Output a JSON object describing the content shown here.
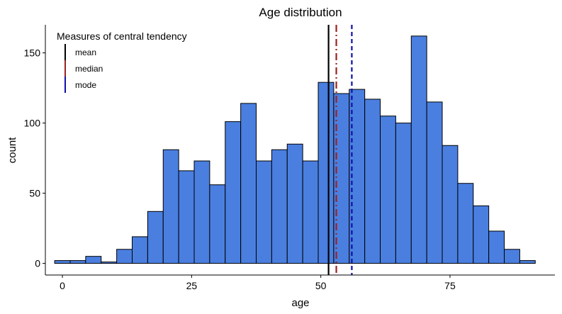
{
  "chart_data": {
    "type": "bar",
    "title": "Age distribution",
    "xlabel": "age",
    "ylabel": "count",
    "xlim": [
      -3.3,
      95.3
    ],
    "ylim": [
      -8.3,
      170
    ],
    "xticks": [
      0,
      25,
      50,
      75
    ],
    "yticks": [
      0,
      50,
      100,
      150
    ],
    "bin_width": 3,
    "bins": [
      {
        "x0": -1.5,
        "x1": 1.5,
        "count": 2
      },
      {
        "x0": 1.5,
        "x1": 4.5,
        "count": 2
      },
      {
        "x0": 4.5,
        "x1": 7.5,
        "count": 5
      },
      {
        "x0": 7.5,
        "x1": 10.5,
        "count": 1
      },
      {
        "x0": 10.5,
        "x1": 13.5,
        "count": 10
      },
      {
        "x0": 13.5,
        "x1": 16.5,
        "count": 19
      },
      {
        "x0": 16.5,
        "x1": 19.5,
        "count": 37
      },
      {
        "x0": 19.5,
        "x1": 22.5,
        "count": 81
      },
      {
        "x0": 22.5,
        "x1": 25.5,
        "count": 66
      },
      {
        "x0": 25.5,
        "x1": 28.5,
        "count": 73
      },
      {
        "x0": 28.5,
        "x1": 31.5,
        "count": 56
      },
      {
        "x0": 31.5,
        "x1": 34.5,
        "count": 101
      },
      {
        "x0": 34.5,
        "x1": 37.5,
        "count": 114
      },
      {
        "x0": 37.5,
        "x1": 40.5,
        "count": 73
      },
      {
        "x0": 40.5,
        "x1": 43.5,
        "count": 81
      },
      {
        "x0": 43.5,
        "x1": 46.5,
        "count": 85
      },
      {
        "x0": 46.5,
        "x1": 49.5,
        "count": 73
      },
      {
        "x0": 49.5,
        "x1": 52.5,
        "count": 129
      },
      {
        "x0": 52.5,
        "x1": 55.5,
        "count": 121
      },
      {
        "x0": 55.5,
        "x1": 58.5,
        "count": 124
      },
      {
        "x0": 58.5,
        "x1": 61.5,
        "count": 117
      },
      {
        "x0": 61.5,
        "x1": 64.5,
        "count": 105
      },
      {
        "x0": 64.5,
        "x1": 67.5,
        "count": 100
      },
      {
        "x0": 67.5,
        "x1": 70.5,
        "count": 162
      },
      {
        "x0": 70.5,
        "x1": 73.5,
        "count": 115
      },
      {
        "x0": 73.5,
        "x1": 76.5,
        "count": 84
      },
      {
        "x0": 76.5,
        "x1": 79.5,
        "count": 57
      },
      {
        "x0": 79.5,
        "x1": 82.5,
        "count": 41
      },
      {
        "x0": 82.5,
        "x1": 85.5,
        "count": 23
      },
      {
        "x0": 85.5,
        "x1": 88.5,
        "count": 10
      },
      {
        "x0": 88.5,
        "x1": 91.5,
        "count": 2
      }
    ],
    "bar_fill": "#4a7fe0",
    "bar_stroke": "#000000",
    "reference_lines": [
      {
        "name": "mean",
        "x": 51.5,
        "color": "#000000",
        "dash": "solid"
      },
      {
        "name": "median",
        "x": 53.0,
        "color": "#9b2222",
        "dash": "dashdot"
      },
      {
        "name": "mode",
        "x": 56.0,
        "color": "#1010aa",
        "dash": "dashed"
      }
    ],
    "legend": {
      "title": "Measures of central tendency",
      "position": "top-left",
      "entries": [
        "mean",
        "median",
        "mode"
      ]
    },
    "grid": false
  }
}
